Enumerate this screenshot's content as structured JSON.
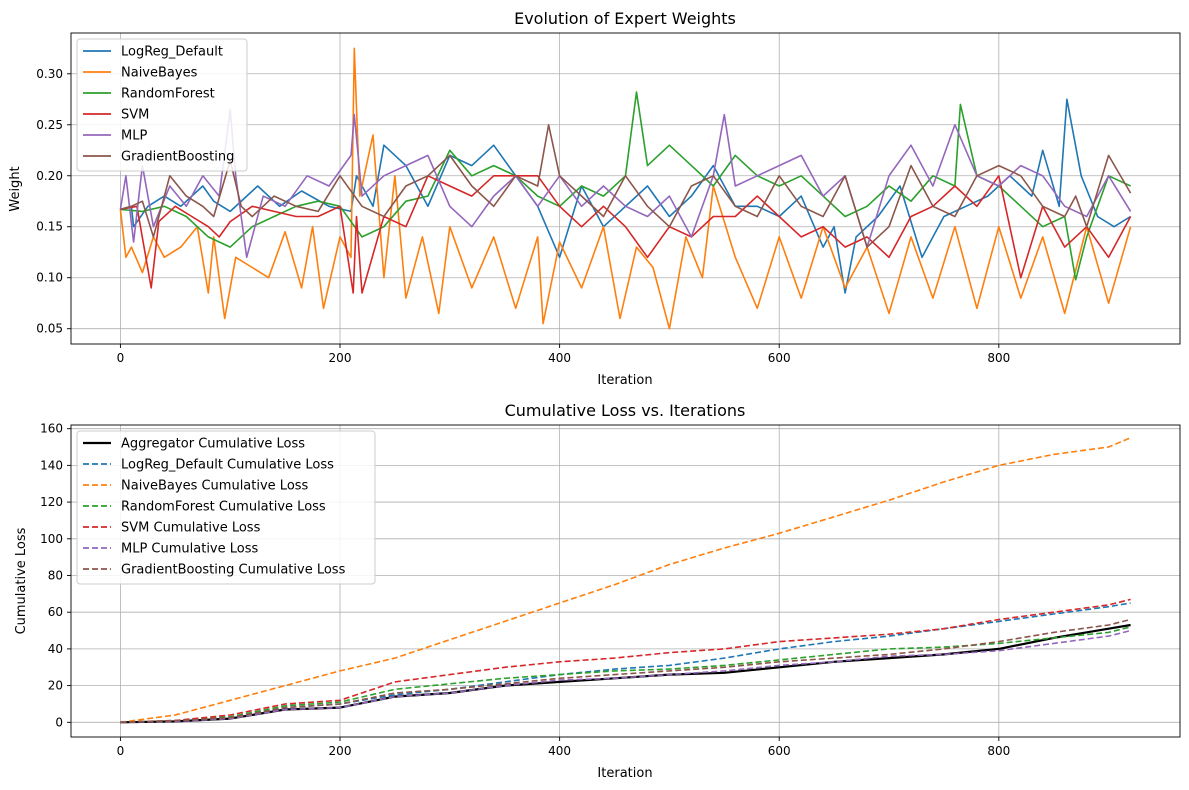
{
  "chart_data": [
    {
      "type": "line",
      "title": "Evolution of Expert Weights",
      "xlabel": "Iteration",
      "ylabel": "Weight",
      "xlim": [
        -45,
        965
      ],
      "ylim": [
        0.035,
        0.34
      ],
      "xticks": [
        0,
        200,
        400,
        600,
        800
      ],
      "yticks": [
        0.05,
        0.1,
        0.15,
        0.2,
        0.25,
        0.3
      ],
      "ytick_labels": [
        "0.05",
        "0.10",
        "0.15",
        "0.20",
        "0.25",
        "0.30"
      ],
      "grid": true,
      "legend_position": "upper left",
      "series": [
        {
          "name": "LogReg_Default",
          "color": "#1f77b4",
          "style": "solid",
          "x": [
            0,
            10,
            12,
            25,
            40,
            55,
            75,
            85,
            100,
            125,
            145,
            165,
            190,
            210,
            215,
            230,
            240,
            260,
            280,
            300,
            320,
            340,
            360,
            380,
            400,
            420,
            440,
            460,
            480,
            500,
            520,
            540,
            560,
            580,
            600,
            620,
            640,
            650,
            660,
            670,
            690,
            710,
            730,
            750,
            770,
            790,
            810,
            830,
            840,
            855,
            862,
            875,
            890,
            905,
            920
          ],
          "y": [
            0.167,
            0.17,
            0.15,
            0.17,
            0.18,
            0.17,
            0.19,
            0.175,
            0.165,
            0.19,
            0.17,
            0.185,
            0.17,
            0.165,
            0.2,
            0.17,
            0.23,
            0.21,
            0.17,
            0.22,
            0.21,
            0.23,
            0.2,
            0.17,
            0.12,
            0.19,
            0.15,
            0.17,
            0.19,
            0.16,
            0.18,
            0.21,
            0.17,
            0.17,
            0.16,
            0.18,
            0.13,
            0.15,
            0.085,
            0.14,
            0.16,
            0.19,
            0.12,
            0.16,
            0.17,
            0.18,
            0.2,
            0.18,
            0.225,
            0.17,
            0.275,
            0.2,
            0.16,
            0.15,
            0.16
          ]
        },
        {
          "name": "NaiveBayes",
          "color": "#ff7f0e",
          "style": "solid",
          "x": [
            0,
            5,
            10,
            20,
            30,
            40,
            55,
            70,
            80,
            85,
            95,
            105,
            120,
            135,
            150,
            165,
            175,
            185,
            200,
            210,
            213,
            218,
            230,
            240,
            250,
            260,
            275,
            290,
            300,
            320,
            340,
            360,
            380,
            385,
            400,
            420,
            440,
            455,
            470,
            485,
            500,
            515,
            530,
            540,
            560,
            580,
            600,
            620,
            640,
            660,
            680,
            700,
            720,
            740,
            760,
            780,
            800,
            820,
            840,
            860,
            880,
            900,
            920
          ],
          "y": [
            0.167,
            0.12,
            0.13,
            0.105,
            0.14,
            0.12,
            0.13,
            0.15,
            0.085,
            0.14,
            0.06,
            0.12,
            0.11,
            0.1,
            0.145,
            0.09,
            0.15,
            0.07,
            0.14,
            0.12,
            0.325,
            0.18,
            0.24,
            0.1,
            0.2,
            0.08,
            0.14,
            0.065,
            0.15,
            0.09,
            0.14,
            0.07,
            0.14,
            0.055,
            0.135,
            0.09,
            0.15,
            0.06,
            0.13,
            0.11,
            0.05,
            0.14,
            0.1,
            0.19,
            0.12,
            0.07,
            0.14,
            0.08,
            0.15,
            0.09,
            0.13,
            0.065,
            0.14,
            0.08,
            0.15,
            0.07,
            0.15,
            0.08,
            0.14,
            0.065,
            0.15,
            0.075,
            0.15
          ]
        },
        {
          "name": "RandomForest",
          "color": "#2ca02c",
          "style": "solid",
          "x": [
            0,
            20,
            40,
            60,
            80,
            100,
            120,
            140,
            160,
            180,
            200,
            220,
            240,
            260,
            280,
            300,
            320,
            340,
            360,
            380,
            400,
            420,
            440,
            460,
            470,
            480,
            500,
            520,
            540,
            560,
            580,
            600,
            620,
            640,
            660,
            680,
            700,
            720,
            740,
            760,
            765,
            780,
            800,
            820,
            840,
            860,
            870,
            880,
            900,
            920
          ],
          "y": [
            0.167,
            0.165,
            0.17,
            0.16,
            0.14,
            0.13,
            0.15,
            0.16,
            0.17,
            0.175,
            0.17,
            0.14,
            0.15,
            0.175,
            0.18,
            0.225,
            0.2,
            0.21,
            0.2,
            0.18,
            0.17,
            0.19,
            0.18,
            0.2,
            0.282,
            0.21,
            0.23,
            0.21,
            0.19,
            0.22,
            0.2,
            0.19,
            0.2,
            0.18,
            0.16,
            0.17,
            0.19,
            0.175,
            0.2,
            0.19,
            0.27,
            0.2,
            0.19,
            0.17,
            0.15,
            0.16,
            0.098,
            0.14,
            0.2,
            0.19
          ]
        },
        {
          "name": "SVM",
          "color": "#d62728",
          "style": "solid",
          "x": [
            0,
            15,
            28,
            35,
            50,
            65,
            80,
            90,
            100,
            120,
            140,
            160,
            180,
            200,
            212,
            215,
            220,
            240,
            260,
            280,
            300,
            320,
            340,
            360,
            380,
            400,
            420,
            440,
            460,
            480,
            500,
            520,
            540,
            560,
            580,
            600,
            620,
            640,
            660,
            680,
            700,
            720,
            740,
            760,
            780,
            800,
            820,
            840,
            860,
            880,
            900,
            920
          ],
          "y": [
            0.167,
            0.17,
            0.09,
            0.155,
            0.17,
            0.16,
            0.15,
            0.14,
            0.155,
            0.17,
            0.165,
            0.16,
            0.16,
            0.17,
            0.085,
            0.16,
            0.085,
            0.16,
            0.15,
            0.2,
            0.19,
            0.18,
            0.2,
            0.2,
            0.2,
            0.17,
            0.15,
            0.17,
            0.15,
            0.12,
            0.15,
            0.14,
            0.16,
            0.16,
            0.18,
            0.16,
            0.14,
            0.15,
            0.13,
            0.14,
            0.12,
            0.16,
            0.17,
            0.19,
            0.17,
            0.2,
            0.1,
            0.17,
            0.13,
            0.15,
            0.12,
            0.16
          ]
        },
        {
          "name": "MLP",
          "color": "#9467bd",
          "style": "solid",
          "x": [
            0,
            5,
            12,
            20,
            30,
            45,
            60,
            75,
            90,
            100,
            105,
            115,
            130,
            150,
            170,
            190,
            210,
            213,
            220,
            240,
            260,
            280,
            300,
            320,
            340,
            360,
            380,
            400,
            420,
            440,
            460,
            480,
            500,
            520,
            540,
            550,
            560,
            580,
            600,
            620,
            640,
            660,
            680,
            700,
            720,
            740,
            760,
            780,
            800,
            820,
            840,
            860,
            880,
            900,
            920
          ],
          "y": [
            0.167,
            0.2,
            0.135,
            0.21,
            0.15,
            0.19,
            0.17,
            0.2,
            0.18,
            0.265,
            0.2,
            0.12,
            0.18,
            0.17,
            0.2,
            0.19,
            0.22,
            0.26,
            0.18,
            0.2,
            0.21,
            0.22,
            0.17,
            0.15,
            0.18,
            0.2,
            0.17,
            0.2,
            0.17,
            0.19,
            0.17,
            0.16,
            0.18,
            0.14,
            0.2,
            0.26,
            0.19,
            0.2,
            0.21,
            0.22,
            0.18,
            0.2,
            0.13,
            0.2,
            0.23,
            0.19,
            0.25,
            0.2,
            0.19,
            0.21,
            0.2,
            0.17,
            0.16,
            0.2,
            0.165
          ]
        },
        {
          "name": "GradientBoosting",
          "color": "#8c564b",
          "style": "solid",
          "x": [
            0,
            10,
            20,
            30,
            45,
            60,
            75,
            85,
            100,
            110,
            120,
            140,
            160,
            180,
            200,
            220,
            240,
            260,
            280,
            300,
            320,
            340,
            360,
            380,
            390,
            400,
            420,
            440,
            460,
            480,
            500,
            520,
            540,
            560,
            580,
            600,
            620,
            640,
            660,
            680,
            700,
            720,
            740,
            760,
            780,
            800,
            820,
            840,
            860,
            870,
            880,
            900,
            920
          ],
          "y": [
            0.167,
            0.17,
            0.175,
            0.14,
            0.2,
            0.18,
            0.17,
            0.16,
            0.215,
            0.17,
            0.16,
            0.18,
            0.17,
            0.165,
            0.2,
            0.17,
            0.16,
            0.19,
            0.2,
            0.22,
            0.19,
            0.17,
            0.2,
            0.19,
            0.25,
            0.2,
            0.18,
            0.16,
            0.2,
            0.17,
            0.15,
            0.19,
            0.2,
            0.17,
            0.16,
            0.2,
            0.17,
            0.16,
            0.2,
            0.13,
            0.15,
            0.21,
            0.17,
            0.16,
            0.2,
            0.21,
            0.2,
            0.17,
            0.16,
            0.18,
            0.15,
            0.22,
            0.183
          ]
        }
      ]
    },
    {
      "type": "line",
      "title": "Cumulative Loss vs. Iterations",
      "xlabel": "Iteration",
      "ylabel": "Cumulative Loss",
      "xlim": [
        -45,
        965
      ],
      "ylim": [
        -8,
        162
      ],
      "xticks": [
        0,
        200,
        400,
        600,
        800
      ],
      "yticks": [
        0,
        20,
        40,
        60,
        80,
        100,
        120,
        140,
        160
      ],
      "ytick_labels": [
        "0",
        "20",
        "40",
        "60",
        "80",
        "100",
        "120",
        "140",
        "160"
      ],
      "grid": true,
      "legend_position": "upper left",
      "series": [
        {
          "name": "Aggregator Cumulative Loss",
          "color": "#000000",
          "style": "solid",
          "width": 2.2,
          "x": [
            0,
            50,
            100,
            150,
            200,
            250,
            300,
            350,
            400,
            450,
            500,
            550,
            600,
            650,
            700,
            750,
            800,
            850,
            900,
            920
          ],
          "y": [
            0,
            0.5,
            2,
            7,
            8,
            14,
            16,
            20,
            22,
            24,
            26,
            27,
            30,
            33,
            35,
            37,
            40,
            46,
            51,
            53
          ]
        },
        {
          "name": "LogReg_Default Cumulative Loss",
          "color": "#1f77b4",
          "style": "dashed",
          "x": [
            0,
            50,
            100,
            150,
            200,
            250,
            300,
            350,
            400,
            450,
            500,
            550,
            600,
            650,
            700,
            750,
            800,
            850,
            900,
            920
          ],
          "y": [
            0,
            1,
            3,
            8,
            10,
            15,
            18,
            22,
            26,
            29,
            31,
            35,
            40,
            44,
            47,
            51,
            55,
            59,
            63,
            65
          ]
        },
        {
          "name": "NaiveBayes Cumulative Loss",
          "color": "#ff7f0e",
          "style": "dashed",
          "x": [
            0,
            50,
            100,
            150,
            200,
            250,
            300,
            350,
            400,
            450,
            500,
            550,
            600,
            650,
            700,
            750,
            800,
            850,
            900,
            920
          ],
          "y": [
            0,
            4,
            12,
            20,
            28,
            35,
            45,
            55,
            65,
            75,
            86,
            95,
            103,
            112,
            121,
            131,
            140,
            146,
            150,
            155
          ]
        },
        {
          "name": "RandomForest Cumulative Loss",
          "color": "#2ca02c",
          "style": "dashed",
          "x": [
            0,
            50,
            100,
            150,
            200,
            250,
            300,
            350,
            400,
            450,
            500,
            550,
            600,
            650,
            700,
            750,
            800,
            850,
            900,
            920
          ],
          "y": [
            0,
            1,
            3,
            9,
            11,
            18,
            21,
            24,
            26,
            28,
            29,
            31,
            34,
            37,
            40,
            41,
            43,
            46,
            49,
            52
          ]
        },
        {
          "name": "SVM Cumulative Loss",
          "color": "#d62728",
          "style": "dashed",
          "x": [
            0,
            50,
            100,
            150,
            200,
            250,
            300,
            350,
            400,
            450,
            500,
            550,
            600,
            650,
            700,
            750,
            800,
            850,
            900,
            920
          ],
          "y": [
            0,
            1,
            4,
            10,
            12,
            22,
            26,
            30,
            33,
            35,
            38,
            40,
            44,
            46,
            48,
            51,
            56,
            60,
            64,
            67
          ]
        },
        {
          "name": "MLP Cumulative Loss",
          "color": "#9467bd",
          "style": "dashed",
          "x": [
            0,
            50,
            100,
            150,
            200,
            250,
            300,
            350,
            400,
            450,
            500,
            550,
            600,
            650,
            700,
            750,
            800,
            850,
            900,
            920
          ],
          "y": [
            0,
            0.5,
            2,
            7,
            8,
            14,
            16,
            20,
            23,
            24,
            26,
            28,
            31,
            33,
            36,
            37,
            39,
            43,
            47,
            50
          ]
        },
        {
          "name": "GradientBoosting Cumulative Loss",
          "color": "#8c564b",
          "style": "dashed",
          "x": [
            0,
            50,
            100,
            150,
            200,
            250,
            300,
            350,
            400,
            450,
            500,
            550,
            600,
            650,
            700,
            750,
            800,
            850,
            900,
            920
          ],
          "y": [
            0,
            0.8,
            2.5,
            8,
            10,
            16,
            18,
            21,
            24,
            26,
            28,
            30,
            33,
            35,
            37,
            40,
            44,
            49,
            53,
            56
          ]
        }
      ]
    }
  ]
}
